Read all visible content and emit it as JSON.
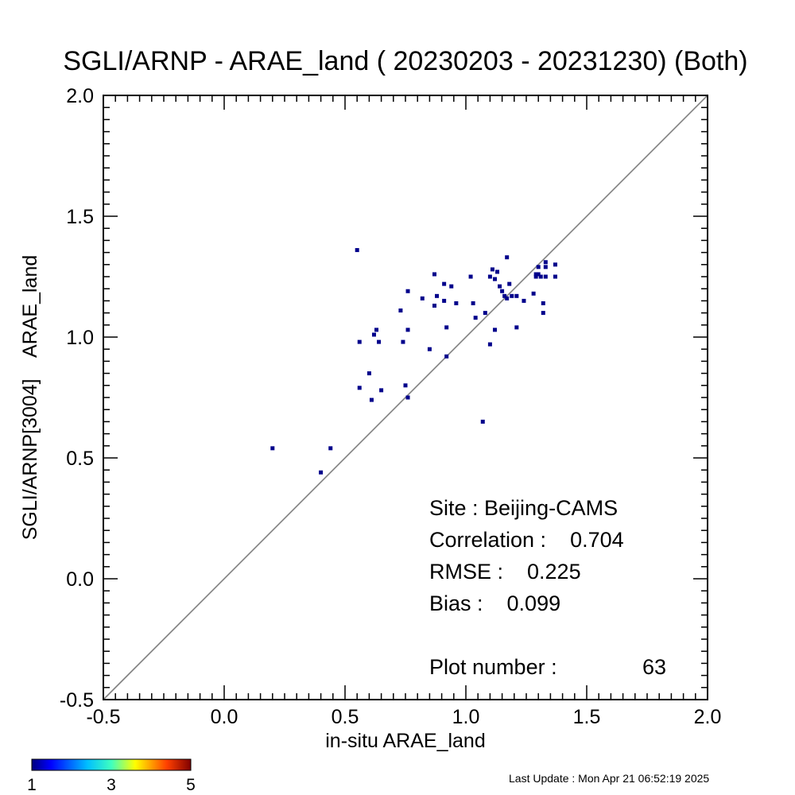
{
  "chart_data": {
    "type": "scatter",
    "title": "SGLI/ARNP - ARAE_land ( 20230203 - 20231230) (Both)",
    "xlabel": "in-situ ARAE_land",
    "ylabel": "SGLI/ARNP[3004]    ARAE_land",
    "xlim": [
      -0.5,
      2.0
    ],
    "ylim": [
      -0.5,
      2.0
    ],
    "x_ticks": [
      "-0.5",
      "0.0",
      "0.5",
      "1.0",
      "1.5",
      "2.0"
    ],
    "y_ticks": [
      "-0.5",
      "0.0",
      "0.5",
      "1.0",
      "1.5",
      "2.0"
    ],
    "reference_line": "1:1",
    "grid": false,
    "point_color": "#00008b",
    "points": [
      [
        0.2,
        0.54
      ],
      [
        0.4,
        0.44
      ],
      [
        0.44,
        0.54
      ],
      [
        0.55,
        1.36
      ],
      [
        0.56,
        0.79
      ],
      [
        0.56,
        0.98
      ],
      [
        0.6,
        0.85
      ],
      [
        0.61,
        0.74
      ],
      [
        0.62,
        1.01
      ],
      [
        0.63,
        1.03
      ],
      [
        0.64,
        0.98
      ],
      [
        0.65,
        0.78
      ],
      [
        0.73,
        1.11
      ],
      [
        0.74,
        0.98
      ],
      [
        0.75,
        0.8
      ],
      [
        0.76,
        1.19
      ],
      [
        0.76,
        1.03
      ],
      [
        0.76,
        0.75
      ],
      [
        0.82,
        1.16
      ],
      [
        0.85,
        0.95
      ],
      [
        0.87,
        1.26
      ],
      [
        0.87,
        1.13
      ],
      [
        0.88,
        1.17
      ],
      [
        0.91,
        1.22
      ],
      [
        0.91,
        1.15
      ],
      [
        0.92,
        0.92
      ],
      [
        0.92,
        1.04
      ],
      [
        0.94,
        1.21
      ],
      [
        0.96,
        1.14
      ],
      [
        1.02,
        1.25
      ],
      [
        1.03,
        1.14
      ],
      [
        1.04,
        1.08
      ],
      [
        1.07,
        0.65
      ],
      [
        1.08,
        1.1
      ],
      [
        1.1,
        1.25
      ],
      [
        1.1,
        0.97
      ],
      [
        1.11,
        1.28
      ],
      [
        1.12,
        1.24
      ],
      [
        1.12,
        1.03
      ],
      [
        1.13,
        1.27
      ],
      [
        1.14,
        1.21
      ],
      [
        1.15,
        1.19
      ],
      [
        1.16,
        1.17
      ],
      [
        1.17,
        1.16
      ],
      [
        1.17,
        1.33
      ],
      [
        1.18,
        1.22
      ],
      [
        1.19,
        1.17
      ],
      [
        1.21,
        1.17
      ],
      [
        1.21,
        1.04
      ],
      [
        1.24,
        1.15
      ],
      [
        1.28,
        1.18
      ],
      [
        1.29,
        1.25
      ],
      [
        1.3,
        1.26
      ],
      [
        1.3,
        1.29
      ],
      [
        1.31,
        1.25
      ],
      [
        1.32,
        1.14
      ],
      [
        1.32,
        1.1
      ],
      [
        1.33,
        1.25
      ],
      [
        1.33,
        1.29
      ],
      [
        1.33,
        1.31
      ],
      [
        1.37,
        1.3
      ],
      [
        1.37,
        1.25
      ],
      [
        1.29,
        1.26
      ]
    ],
    "annotations": {
      "site": "Site : Beijing-CAMS",
      "correlation": "Correlation :    0.704",
      "rmse": "RMSE :    0.225",
      "bias": "Bias :    0.099",
      "plot_number_label": "Plot number :",
      "plot_number_value": "63"
    },
    "colorbar": {
      "ticks": [
        "1",
        "3",
        "5"
      ],
      "range": [
        1,
        5
      ],
      "colors": [
        "#00007f",
        "#0000ff",
        "#00bfff",
        "#3fffbf",
        "#ffff00",
        "#ff7f00",
        "#ff0000",
        "#7f0000"
      ]
    }
  },
  "footer": {
    "last_update": "Last Update : Mon Apr 21 06:52:19 2025"
  }
}
